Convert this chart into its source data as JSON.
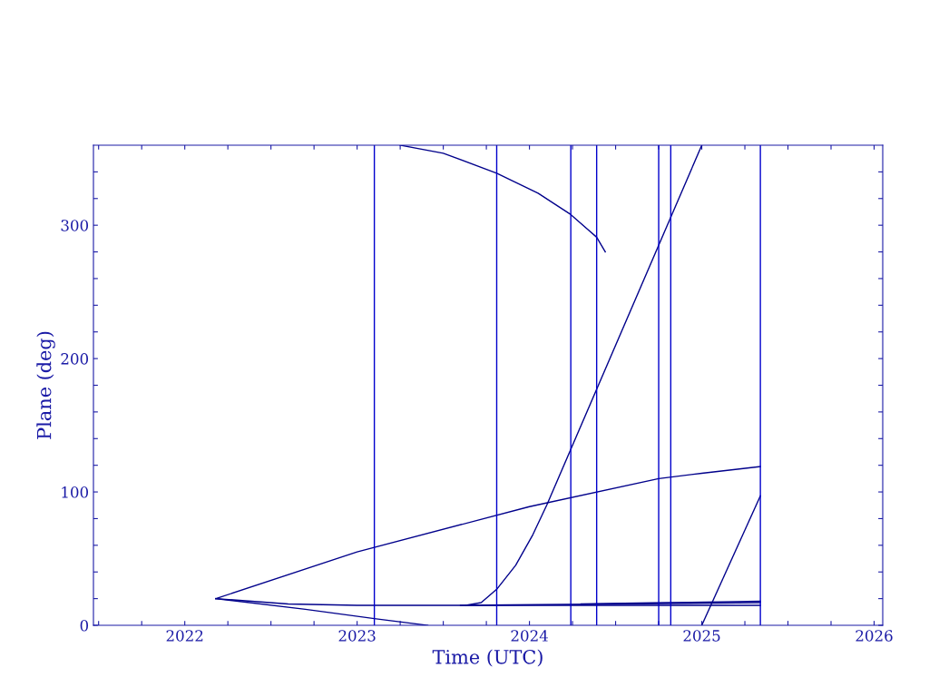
{
  "chart_data": {
    "type": "line",
    "xlabel": "Time (UTC)",
    "ylabel": "Plane (deg)",
    "xlim": [
      2021.47,
      2026.05
    ],
    "ylim": [
      0,
      360
    ],
    "xticks": [
      2022,
      2023,
      2024,
      2025,
      2026,
      {
        "value": 2021.5,
        "label": null
      },
      {
        "value": 2021.75,
        "label": null
      },
      {
        "value": 2022.25,
        "label": null
      },
      {
        "value": 2022.5,
        "label": null
      },
      {
        "value": 2022.75,
        "label": null
      },
      {
        "value": 2023.25,
        "label": null
      },
      {
        "value": 2023.5,
        "label": null
      },
      {
        "value": 2023.75,
        "label": null
      },
      {
        "value": 2024.25,
        "label": null
      },
      {
        "value": 2024.5,
        "label": null
      },
      {
        "value": 2024.75,
        "label": null
      },
      {
        "value": 2025.25,
        "label": null
      },
      {
        "value": 2025.5,
        "label": null
      },
      {
        "value": 2025.75,
        "label": null
      }
    ],
    "yticks": [
      0,
      100,
      200,
      300,
      {
        "value": 20,
        "label": null
      },
      {
        "value": 40,
        "label": null
      },
      {
        "value": 60,
        "label": null
      },
      {
        "value": 80,
        "label": null
      },
      {
        "value": 120,
        "label": null
      },
      {
        "value": 140,
        "label": null
      },
      {
        "value": 160,
        "label": null
      },
      {
        "value": 180,
        "label": null
      },
      {
        "value": 220,
        "label": null
      },
      {
        "value": 240,
        "label": null
      },
      {
        "value": 260,
        "label": null
      },
      {
        "value": 280,
        "label": null
      },
      {
        "value": 320,
        "label": null
      },
      {
        "value": 340,
        "label": null
      }
    ],
    "grid": false,
    "series": [
      {
        "color": "#00008b",
        "x": [
          2022.18,
          2023.0,
          2024.0,
          2024.75,
          2025.0,
          2025.34
        ],
        "values": [
          20,
          55,
          89,
          110,
          114,
          119
        ]
      },
      {
        "color": "#00008b",
        "x": [
          2022.18,
          2022.7,
          2023.1,
          2023.41
        ],
        "values": [
          20,
          12,
          5,
          0
        ]
      },
      {
        "color": "#00008b",
        "x": [
          2022.18,
          2022.6,
          2023.0,
          2024.0,
          2025.34
        ],
        "values": [
          20,
          16,
          15,
          15,
          15
        ]
      },
      {
        "color": "#00008b",
        "x": [
          2023.6,
          2024.5,
          2025.34
        ],
        "values": [
          15,
          16,
          17
        ]
      },
      {
        "color": "#00008b",
        "x": [
          2024.3,
          2024.8,
          2025.34
        ],
        "values": [
          16,
          17,
          18
        ]
      },
      {
        "color": "#00008b",
        "x": [
          2023.63,
          2023.72,
          2023.81,
          2023.92,
          2024.02,
          2024.1,
          2025.0
        ],
        "values": [
          15,
          17,
          27,
          45,
          68,
          90,
          360
        ]
      },
      {
        "color": "#00008b",
        "x": [
          2023.25,
          2023.5,
          2023.81,
          2024.05,
          2024.24,
          2024.39,
          2024.44
        ],
        "values": [
          360,
          354,
          339,
          324,
          308,
          291,
          280
        ]
      },
      {
        "color": "#00008b",
        "x": [
          2025.0,
          2025.34
        ],
        "values": [
          0,
          97
        ]
      }
    ],
    "ref_lines": [
      {
        "axis": "x",
        "value": 2023.1,
        "color": "#0000cc"
      },
      {
        "axis": "x",
        "value": 2023.81,
        "color": "#0000cc"
      },
      {
        "axis": "x",
        "value": 2024.24,
        "color": "#0000cc"
      },
      {
        "axis": "x",
        "value": 2024.39,
        "color": "#0000cc"
      },
      {
        "axis": "x",
        "value": 2024.75,
        "color": "#0000cc"
      },
      {
        "axis": "x",
        "value": 2024.82,
        "color": "#0000cc"
      },
      {
        "axis": "x",
        "value": 2025.34,
        "color": "#0000cc"
      }
    ]
  }
}
